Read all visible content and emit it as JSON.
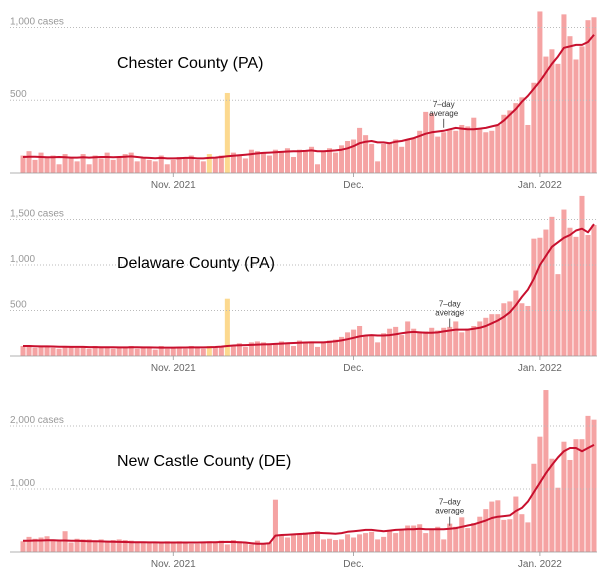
{
  "chart_data": [
    {
      "type": "bar",
      "title": "Chester County (PA)",
      "annotation": [
        "7–day",
        "average"
      ],
      "categories": [
        null,
        null,
        null,
        null,
        null,
        null,
        null,
        null,
        null,
        null,
        null,
        null,
        null,
        null,
        null,
        null,
        null,
        null,
        null,
        null,
        null,
        null,
        null,
        null,
        null,
        "Nov. 2021",
        null,
        null,
        null,
        null,
        null,
        null,
        null,
        null,
        null,
        null,
        null,
        null,
        null,
        null,
        null,
        null,
        null,
        null,
        null,
        null,
        null,
        null,
        null,
        null,
        null,
        null,
        null,
        null,
        null,
        "Dec.",
        null,
        null,
        null,
        null,
        null,
        null,
        null,
        null,
        null,
        null,
        null,
        null,
        null,
        null,
        null,
        null,
        null,
        null,
        null,
        null,
        null,
        null,
        null,
        null,
        null,
        null,
        null,
        null,
        null,
        null,
        "Jan. 2022",
        null,
        null,
        null,
        null,
        null,
        null,
        null,
        null,
        null
      ],
      "ylim": [
        0,
        1120
      ],
      "yticks": [
        500,
        {
          "value": 1000,
          "label": "1,000 cases"
        }
      ],
      "grid": true,
      "series": [
        {
          "color": "#f5a3a3",
          "values": [
            120,
            150,
            90,
            140,
            110,
            120,
            60,
            130,
            100,
            80,
            130,
            60,
            120,
            100,
            140,
            90,
            110,
            130,
            140,
            80,
            100,
            90,
            80,
            120,
            60,
            90,
            110,
            100,
            120,
            90,
            80,
            null,
            110,
            120,
            null,
            140,
            120,
            100,
            160,
            150,
            140,
            120,
            160,
            150,
            170,
            110,
            160,
            150,
            180,
            60,
            150,
            170,
            140,
            190,
            220,
            230,
            310,
            260,
            200,
            80,
            200,
            210,
            230,
            180,
            230,
            240,
            290,
            420,
            410,
            250,
            280,
            300,
            290,
            330,
            320,
            380,
            300,
            280,
            290,
            330,
            400,
            430,
            480,
            520,
            330,
            620,
            1110,
            800,
            850,
            750,
            1090,
            940,
            780,
            870,
            1050,
            1070
          ]
        },
        {
          "color": "#fcd98f",
          "values": [
            null,
            null,
            null,
            null,
            null,
            null,
            null,
            null,
            null,
            null,
            null,
            null,
            null,
            null,
            null,
            null,
            null,
            null,
            null,
            null,
            null,
            null,
            null,
            null,
            null,
            null,
            null,
            null,
            null,
            null,
            null,
            130,
            null,
            null,
            550,
            null,
            null,
            null,
            null,
            null,
            null,
            null,
            null,
            null,
            null,
            null,
            null,
            null,
            null,
            null,
            null,
            null,
            null,
            null,
            null,
            null,
            null,
            null,
            null,
            null,
            null,
            null,
            null,
            null,
            null,
            null,
            null,
            null,
            null,
            null,
            null,
            null,
            null,
            null,
            null,
            null,
            null,
            null,
            null,
            null,
            null,
            null,
            null,
            null,
            null,
            null,
            null,
            null,
            null,
            null,
            null,
            null,
            null,
            null,
            null,
            null
          ]
        },
        {
          "type": "line",
          "color": "#c8102e",
          "values": [
            110,
            112,
            112,
            110,
            108,
            108,
            110,
            108,
            106,
            106,
            108,
            106,
            108,
            110,
            110,
            108,
            110,
            112,
            114,
            110,
            106,
            104,
            102,
            104,
            100,
            100,
            102,
            104,
            104,
            100,
            100,
            104,
            106,
            110,
            115,
            118,
            122,
            126,
            130,
            135,
            138,
            140,
            142,
            145,
            148,
            150,
            150,
            152,
            155,
            150,
            150,
            152,
            155,
            160,
            170,
            185,
            205,
            215,
            220,
            210,
            210,
            205,
            215,
            220,
            230,
            240,
            255,
            270,
            280,
            285,
            290,
            300,
            310,
            305,
            300,
            300,
            305,
            310,
            320,
            330,
            360,
            400,
            440,
            490,
            530,
            580,
            630,
            690,
            750,
            800,
            860,
            870,
            880,
            880,
            900,
            950
          ]
        }
      ]
    },
    {
      "type": "bar",
      "title": "Delaware County (PA)",
      "annotation": [
        "7–day",
        "average"
      ],
      "categories": [
        null,
        null,
        null,
        null,
        null,
        null,
        null,
        null,
        null,
        null,
        null,
        null,
        null,
        null,
        null,
        null,
        null,
        null,
        null,
        null,
        null,
        null,
        null,
        null,
        null,
        "Nov. 2021",
        null,
        null,
        null,
        null,
        null,
        null,
        null,
        null,
        null,
        null,
        null,
        null,
        null,
        null,
        null,
        null,
        null,
        null,
        null,
        null,
        null,
        null,
        null,
        null,
        null,
        null,
        null,
        null,
        null,
        "Dec.",
        null,
        null,
        null,
        null,
        null,
        null,
        null,
        null,
        null,
        null,
        null,
        null,
        null,
        null,
        null,
        null,
        null,
        null,
        null,
        null,
        null,
        null,
        null,
        null,
        null,
        null,
        null,
        null,
        null,
        null,
        "Jan. 2022",
        null,
        null,
        null,
        null,
        null,
        null,
        null,
        null,
        null
      ],
      "ylim": [
        0,
        1770
      ],
      "yticks": [
        500,
        {
          "value": 1000,
          "label": "1,000"
        },
        {
          "value": 1500,
          "label": "1,500 cases"
        }
      ],
      "grid": true,
      "series": [
        {
          "color": "#f5a3a3",
          "values": [
            110,
            120,
            90,
            110,
            100,
            90,
            80,
            110,
            100,
            90,
            100,
            80,
            110,
            90,
            100,
            80,
            100,
            90,
            110,
            80,
            100,
            90,
            70,
            110,
            80,
            90,
            100,
            80,
            110,
            90,
            80,
            null,
            100,
            100,
            null,
            110,
            140,
            100,
            150,
            160,
            150,
            130,
            140,
            160,
            140,
            110,
            170,
            150,
            160,
            100,
            160,
            170,
            180,
            210,
            260,
            290,
            330,
            230,
            220,
            150,
            250,
            300,
            320,
            230,
            380,
            300,
            270,
            270,
            310,
            280,
            310,
            320,
            380,
            260,
            300,
            330,
            380,
            420,
            460,
            460,
            580,
            600,
            720,
            580,
            550,
            1290,
            1300,
            1390,
            1530,
            900,
            1610,
            1410,
            1310,
            1760,
            1330,
            1440
          ]
        },
        {
          "color": "#fcd98f",
          "values": [
            null,
            null,
            null,
            null,
            null,
            null,
            null,
            null,
            null,
            null,
            null,
            null,
            null,
            null,
            null,
            null,
            null,
            null,
            null,
            null,
            null,
            null,
            null,
            null,
            null,
            null,
            null,
            null,
            null,
            null,
            null,
            110,
            null,
            null,
            630,
            null,
            null,
            null,
            null,
            null,
            null,
            null,
            null,
            null,
            null,
            null,
            null,
            null,
            null,
            null,
            null,
            null,
            null,
            null,
            null,
            null,
            null,
            null,
            null,
            null,
            null,
            null,
            null,
            null,
            null,
            null,
            null,
            null,
            null,
            null,
            null,
            null,
            null,
            null,
            null,
            null,
            null,
            null,
            null,
            null,
            null,
            null,
            null,
            null,
            null,
            null,
            null,
            null,
            null,
            null,
            null,
            null,
            null,
            null,
            null,
            null
          ]
        },
        {
          "type": "line",
          "color": "#c8102e",
          "values": [
            110,
            110,
            108,
            106,
            105,
            104,
            102,
            102,
            100,
            100,
            100,
            98,
            98,
            97,
            96,
            96,
            95,
            95,
            96,
            96,
            95,
            94,
            93,
            92,
            92,
            92,
            93,
            93,
            94,
            95,
            95,
            97,
            99,
            103,
            110,
            115,
            118,
            120,
            122,
            125,
            128,
            130,
            133,
            136,
            140,
            143,
            146,
            148,
            150,
            150,
            150,
            155,
            162,
            172,
            185,
            200,
            215,
            225,
            230,
            225,
            225,
            230,
            240,
            250,
            260,
            265,
            260,
            255,
            255,
            260,
            270,
            280,
            290,
            290,
            290,
            300,
            310,
            330,
            360,
            390,
            430,
            480,
            560,
            650,
            730,
            850,
            1000,
            1100,
            1200,
            1250,
            1300,
            1330,
            1380,
            1400,
            1360,
            1450
          ]
        }
      ]
    },
    {
      "type": "bar",
      "title": "New Castle County (DE)",
      "annotation": [
        "7–day",
        "average"
      ],
      "categories": [
        null,
        null,
        null,
        null,
        null,
        null,
        null,
        null,
        null,
        null,
        null,
        null,
        null,
        null,
        null,
        null,
        null,
        null,
        null,
        null,
        null,
        null,
        null,
        null,
        null,
        "Nov. 2021",
        null,
        null,
        null,
        null,
        null,
        null,
        null,
        null,
        null,
        null,
        null,
        null,
        null,
        null,
        null,
        null,
        null,
        null,
        null,
        null,
        null,
        null,
        null,
        null,
        null,
        null,
        null,
        null,
        null,
        "Dec.",
        null,
        null,
        null,
        null,
        null,
        null,
        null,
        null,
        null,
        null,
        null,
        null,
        null,
        null,
        null,
        null,
        null,
        null,
        null,
        null,
        null,
        null,
        null,
        null,
        null,
        null,
        null,
        null,
        null,
        null,
        "Jan. 2022",
        null,
        null,
        null,
        null,
        null,
        null,
        null,
        null,
        null
      ],
      "ylim": [
        0,
        2650
      ],
      "yticks": [
        {
          "value": 1000,
          "label": "1,000"
        },
        {
          "value": 2000,
          "label": "2,000 cases"
        }
      ],
      "grid": true,
      "series": [
        {
          "color": "#f5a3a3",
          "values": [
            170,
            240,
            210,
            230,
            250,
            200,
            190,
            330,
            150,
            210,
            200,
            200,
            170,
            200,
            180,
            190,
            200,
            190,
            180,
            160,
            150,
            150,
            140,
            160,
            170,
            140,
            170,
            150,
            130,
            130,
            150,
            170,
            160,
            180,
            120,
            190,
            170,
            150,
            120,
            180,
            130,
            150,
            830,
            260,
            230,
            280,
            290,
            310,
            300,
            330,
            200,
            210,
            190,
            200,
            280,
            230,
            280,
            300,
            320,
            200,
            240,
            350,
            300,
            340,
            420,
            420,
            440,
            300,
            370,
            400,
            200,
            450,
            400,
            550,
            380,
            460,
            560,
            680,
            800,
            820,
            510,
            520,
            880,
            600,
            470,
            1400,
            1830,
            2570,
            1480,
            1020,
            1750,
            1460,
            1790,
            1790,
            2160,
            2100
          ]
        },
        {
          "type": "line",
          "color": "#c8102e",
          "values": [
            180,
            180,
            182,
            183,
            185,
            185,
            183,
            182,
            180,
            178,
            175,
            172,
            170,
            168,
            165,
            162,
            160,
            158,
            156,
            155,
            154,
            153,
            152,
            150,
            150,
            150,
            150,
            150,
            150,
            151,
            152,
            154,
            156,
            158,
            160,
            158,
            155,
            150,
            140,
            130,
            130,
            140,
            260,
            270,
            275,
            280,
            285,
            290,
            300,
            305,
            300,
            295,
            290,
            300,
            320,
            330,
            340,
            350,
            350,
            340,
            330,
            340,
            350,
            355,
            360,
            360,
            370,
            360,
            360,
            360,
            360,
            370,
            380,
            400,
            420,
            440,
            470,
            500,
            540,
            560,
            570,
            580,
            650,
            700,
            800,
            950,
            1100,
            1250,
            1380,
            1500,
            1600,
            1650,
            1650,
            1600,
            1650,
            1700
          ]
        }
      ]
    }
  ]
}
